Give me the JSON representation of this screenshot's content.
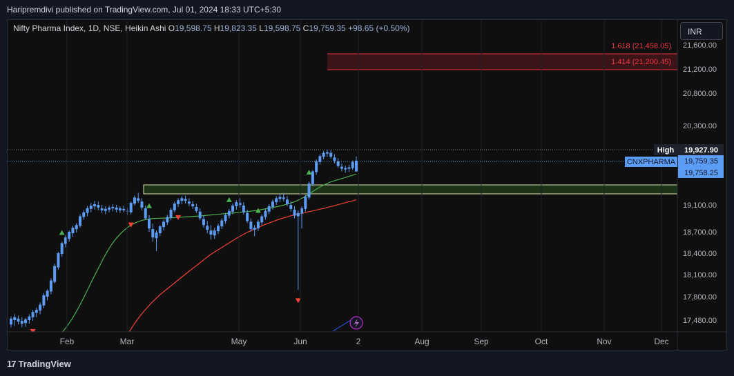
{
  "header": {
    "publish_line": "Haripremdivi published on TradingView.com, Jul 01, 2024 18:33 UTC+5:30"
  },
  "legend": {
    "title": "Nifty Pharma Index, 1D, NSE, Heikin Ashi",
    "o_label": "O",
    "o_value": "19,598.75",
    "h_label": "H",
    "h_value": "19,823.35",
    "l_label": "L",
    "l_value": "19,598.75",
    "c_label": "C",
    "c_value": "19,759.35",
    "change": "+98.65 (+0.50%)"
  },
  "currency_button": "INR",
  "footer": {
    "brand": "TradingView",
    "logo_glyph": "17"
  },
  "colors": {
    "up_candle": "#5b9cf6",
    "green_ma": "#4caf50",
    "red_ma": "#f44336",
    "zone_fill": "#1c3318",
    "fib_zone": "#3b1418",
    "up_marker": "#4caf50",
    "down_marker": "#f44336"
  },
  "chart_data": {
    "type": "candlestick",
    "y_axis_ticks": [
      "21,600.00",
      "21,200.00",
      "20,800.00",
      "20,300.00",
      "19,100.00",
      "18,700.00",
      "18,400.00",
      "18,100.00",
      "17,800.00",
      "17,480.00"
    ],
    "x_axis_labels": [
      "Feb",
      "Mar",
      "May",
      "Jun",
      "2",
      "Aug",
      "Sep",
      "Oct",
      "Nov",
      "Dec"
    ],
    "fib_levels": [
      {
        "label": "1.618 (21,458.05)",
        "value": 21458.05
      },
      {
        "label": "1.414 (21,200.45)",
        "value": 21200.45
      }
    ],
    "price_tags": {
      "high_label": "High",
      "high_value": "19,927.90",
      "symbol": "CNXPHARMA",
      "last_value": "19,759.35",
      "second_value": "19,758.25"
    },
    "support_zone": {
      "top": 19270,
      "bottom": 19150
    },
    "candles": [
      [
        17420,
        17530,
        17380,
        17500
      ],
      [
        17480,
        17560,
        17400,
        17520
      ],
      [
        17500,
        17540,
        17420,
        17460
      ],
      [
        17470,
        17520,
        17380,
        17430
      ],
      [
        17440,
        17510,
        17390,
        17490
      ],
      [
        17480,
        17560,
        17430,
        17530
      ],
      [
        17520,
        17620,
        17470,
        17590
      ],
      [
        17580,
        17650,
        17520,
        17620
      ],
      [
        17610,
        17720,
        17560,
        17690
      ],
      [
        17680,
        17850,
        17640,
        17820
      ],
      [
        17800,
        17900,
        17750,
        17880
      ],
      [
        17870,
        18050,
        17830,
        18020
      ],
      [
        18000,
        18250,
        17980,
        18220
      ],
      [
        18200,
        18420,
        18170,
        18400
      ],
      [
        18390,
        18560,
        18350,
        18540
      ],
      [
        18530,
        18650,
        18480,
        18620
      ],
      [
        18600,
        18720,
        18560,
        18700
      ],
      [
        18680,
        18790,
        18630,
        18760
      ],
      [
        18740,
        18830,
        18690,
        18800
      ],
      [
        18790,
        18960,
        18760,
        18930
      ],
      [
        18920,
        19020,
        18880,
        18990
      ],
      [
        18980,
        19080,
        18930,
        19050
      ],
      [
        19040,
        19130,
        18990,
        19090
      ],
      [
        19080,
        19160,
        19030,
        19110
      ],
      [
        19100,
        19150,
        19020,
        19060
      ],
      [
        19050,
        19100,
        18980,
        19020
      ],
      [
        19010,
        19080,
        18960,
        19040
      ],
      [
        19030,
        19090,
        18990,
        19060
      ],
      [
        19050,
        19110,
        19000,
        19070
      ],
      [
        19060,
        19100,
        18990,
        19030
      ],
      [
        19020,
        19080,
        18980,
        19050
      ],
      [
        19040,
        19090,
        18990,
        19020
      ],
      [
        19010,
        19060,
        18950,
        19000
      ],
      [
        18990,
        19150,
        18960,
        19130
      ],
      [
        19120,
        19240,
        19090,
        19210
      ],
      [
        19200,
        19280,
        19130,
        19160
      ],
      [
        19150,
        19200,
        19020,
        19060
      ],
      [
        19050,
        19090,
        18880,
        18900
      ],
      [
        18890,
        18950,
        18700,
        18750
      ],
      [
        18740,
        18820,
        18560,
        18620
      ],
      [
        18610,
        18720,
        18430,
        18690
      ],
      [
        18680,
        18800,
        18640,
        18780
      ],
      [
        18770,
        18880,
        18720,
        18850
      ],
      [
        18840,
        18950,
        18800,
        18920
      ],
      [
        18910,
        19060,
        18870,
        19030
      ],
      [
        19020,
        19150,
        18990,
        19120
      ],
      [
        19110,
        19200,
        19070,
        19170
      ],
      [
        19160,
        19230,
        19110,
        19200
      ],
      [
        19190,
        19240,
        19120,
        19160
      ],
      [
        19150,
        19200,
        19080,
        19120
      ],
      [
        19110,
        19160,
        19040,
        19080
      ],
      [
        19070,
        19120,
        18980,
        19010
      ],
      [
        19000,
        19050,
        18870,
        18900
      ],
      [
        18890,
        18950,
        18760,
        18800
      ],
      [
        18790,
        18860,
        18680,
        18730
      ],
      [
        18720,
        18800,
        18590,
        18660
      ],
      [
        18650,
        18760,
        18600,
        18720
      ],
      [
        18710,
        18820,
        18670,
        18790
      ],
      [
        18780,
        18900,
        18740,
        18870
      ],
      [
        18860,
        18980,
        18820,
        18950
      ],
      [
        18940,
        19040,
        18900,
        19010
      ],
      [
        19000,
        19120,
        18960,
        19090
      ],
      [
        19080,
        19170,
        19030,
        19140
      ],
      [
        19130,
        19200,
        19060,
        19100
      ],
      [
        19090,
        19140,
        18960,
        18990
      ],
      [
        18980,
        19030,
        18830,
        18860
      ],
      [
        18850,
        18900,
        18700,
        18740
      ],
      [
        18730,
        18800,
        18640,
        18760
      ],
      [
        18750,
        18880,
        18710,
        18850
      ],
      [
        18840,
        18960,
        18800,
        18930
      ],
      [
        18920,
        19040,
        18880,
        19010
      ],
      [
        19000,
        19110,
        18960,
        19080
      ],
      [
        19070,
        19180,
        19030,
        19150
      ],
      [
        19140,
        19230,
        19100,
        19200
      ],
      [
        19190,
        19260,
        19140,
        19220
      ],
      [
        19210,
        19280,
        19150,
        19190
      ],
      [
        19180,
        19230,
        19080,
        19110
      ],
      [
        19100,
        19150,
        19000,
        19040
      ],
      [
        19030,
        19080,
        18900,
        18940
      ],
      [
        18930,
        19020,
        17890,
        18980
      ],
      [
        18970,
        19080,
        18750,
        19050
      ],
      [
        19040,
        19250,
        19000,
        19220
      ],
      [
        19210,
        19450,
        19180,
        19420
      ],
      [
        19410,
        19620,
        19380,
        19600
      ],
      [
        19590,
        19780,
        19550,
        19750
      ],
      [
        19740,
        19860,
        19700,
        19830
      ],
      [
        19820,
        19910,
        19780,
        19880
      ],
      [
        19870,
        19928,
        19820,
        19890
      ],
      [
        19880,
        19920,
        19790,
        19820
      ],
      [
        19810,
        19860,
        19720,
        19760
      ],
      [
        19750,
        19800,
        19650,
        19680
      ],
      [
        19670,
        19720,
        19600,
        19640
      ],
      [
        19630,
        19690,
        19580,
        19650
      ],
      [
        19640,
        19700,
        19590,
        19660
      ],
      [
        19650,
        19760,
        19620,
        19740
      ],
      [
        19598.75,
        19823.35,
        19598.75,
        19759.35
      ]
    ],
    "green_ma": [
      17200,
      17260,
      17330,
      17410,
      17500,
      17600,
      17710,
      17830,
      17950,
      18070,
      18190,
      18310,
      18420,
      18520,
      18600,
      18670,
      18730,
      18780,
      18820,
      18850,
      18870,
      18885,
      18895,
      18900,
      18902,
      18904,
      18907,
      18910,
      18914,
      18918,
      18922,
      18926,
      18930,
      18935,
      18940,
      18946,
      18952,
      18958,
      18964,
      18970,
      18976,
      18982,
      18988,
      18994,
      19000,
      19008,
      19017,
      19027,
      19038,
      19050,
      19062,
      19075,
      19090,
      19108,
      19128,
      19150,
      19180,
      19215,
      19255,
      19300,
      19340,
      19380,
      19410,
      19440,
      19460,
      19480,
      19500,
      19520,
      19540,
      19560
    ],
    "red_ma": [
      16800,
      16900,
      17000,
      17100,
      17200,
      17300,
      17400,
      17490,
      17570,
      17640,
      17710,
      17770,
      17830,
      17880,
      17930,
      17980,
      18030,
      18080,
      18130,
      18180,
      18230,
      18280,
      18330,
      18380,
      18420,
      18460,
      18500,
      18540,
      18580,
      18620,
      18655,
      18690,
      18720,
      18750,
      18780,
      18810,
      18835,
      18860,
      18885,
      18905,
      18925,
      18945,
      18960,
      18975,
      18990,
      19005,
      19020,
      19035,
      19050,
      19068,
      19086,
      19104,
      19122,
      19140,
      19158,
      19176
    ],
    "signals": [
      {
        "type": "down",
        "index": 6
      },
      {
        "type": "up",
        "index": 14
      },
      {
        "type": "down",
        "index": 33
      },
      {
        "type": "up",
        "index": 38
      },
      {
        "type": "down",
        "index": 46
      },
      {
        "type": "up",
        "index": 60
      },
      {
        "type": "up",
        "index": 68
      },
      {
        "type": "down",
        "index": 79
      },
      {
        "type": "up",
        "index": 82
      }
    ]
  }
}
